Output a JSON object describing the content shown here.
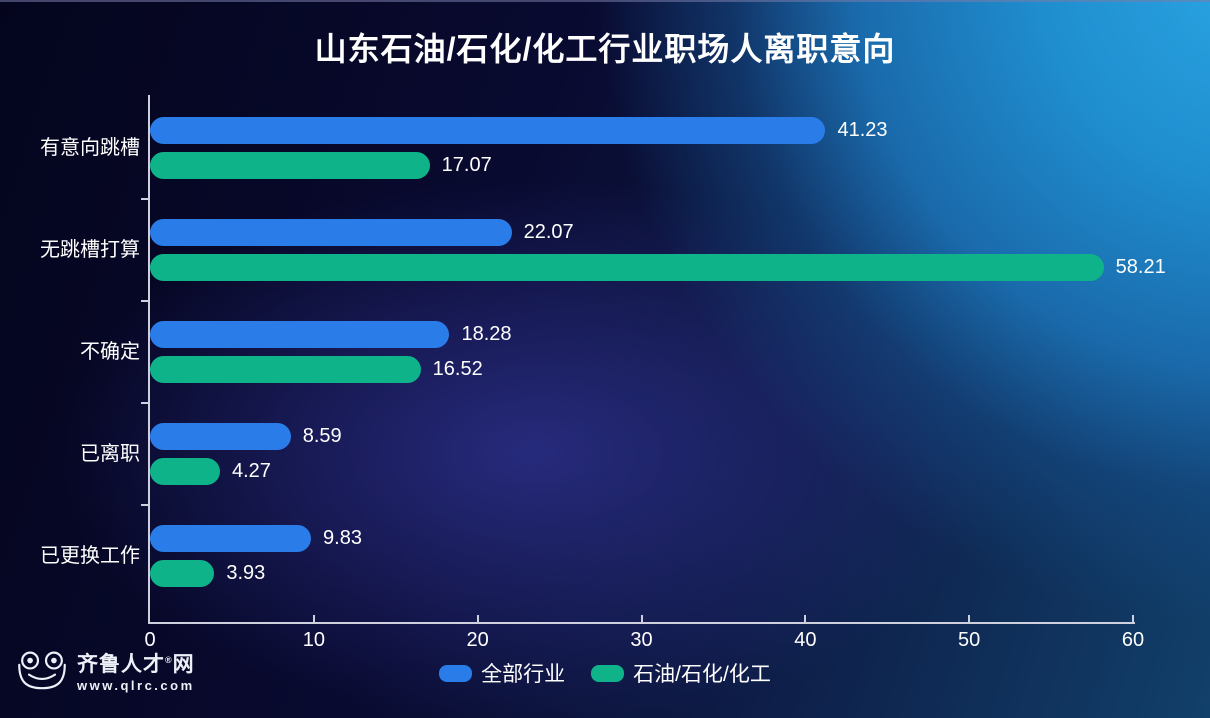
{
  "title": "山东石油/石化/化工行业职场人离职意向",
  "chart_data": {
    "type": "bar",
    "orientation": "horizontal",
    "title": "山东石油/石化/化工行业职场人离职意向",
    "categories": [
      "有意向跳槽",
      "无跳槽打算",
      "不确定",
      "已离职",
      "已更换工作"
    ],
    "series": [
      {
        "name": "全部行业",
        "color": "#2a7ce8",
        "values": [
          41.23,
          22.07,
          18.28,
          8.59,
          9.83
        ]
      },
      {
        "name": "石油/石化/化工",
        "color": "#0fb38a",
        "values": [
          17.07,
          58.21,
          16.52,
          4.27,
          3.93
        ]
      }
    ],
    "xlim": [
      0,
      60
    ],
    "x_ticks": [
      0,
      10,
      20,
      30,
      40,
      50,
      60
    ],
    "x_tick_labels": [
      "0",
      "10",
      "20",
      "30",
      "40",
      "50",
      "60"
    ],
    "value_labels_shown": true,
    "grid": false,
    "legend_position": "bottom",
    "axis_color": "#cfd0dd",
    "text_color": "#ffffff"
  },
  "legend": {
    "items": [
      {
        "label": "全部行业",
        "color": "#2a7ce8"
      },
      {
        "label": "石油/石化/化工",
        "color": "#0fb38a"
      }
    ]
  },
  "branding": {
    "site_name": "齐鲁人才",
    "registered_mark": "®",
    "site_name_suffix": "网",
    "url": "www.qlrc.com",
    "icon": "frog-logo-icon"
  },
  "background": {
    "top_right_glow": "#2ba6e4",
    "center_glow": "#292d82",
    "base_dark": "#04051d",
    "right_mid": "#16548a"
  }
}
